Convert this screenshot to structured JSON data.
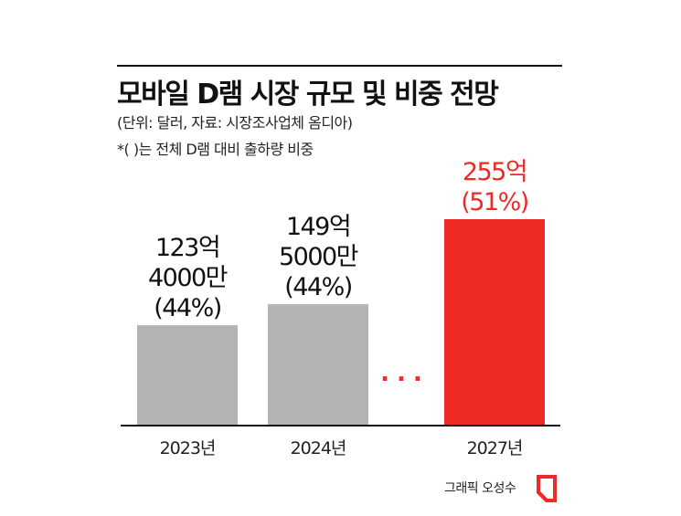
{
  "header": {
    "title": "모바일 D램 시장 규모 및 비중 전망",
    "subtitle": "(단위: 달러, 자료: 시장조사업체 옴디아)",
    "note": "*( )는 전체 D램 대비 출하량 비중"
  },
  "chart_data": {
    "type": "bar",
    "title": "모바일 D램 시장 규모 및 비중 전망",
    "categories": [
      "2023년",
      "2024년",
      "2027년"
    ],
    "values": [
      12340000000,
      14950000000,
      25500000000
    ],
    "share_percent": [
      44,
      44,
      51
    ],
    "value_labels": [
      [
        "123억",
        "4000만",
        "(44%)"
      ],
      [
        "149억",
        "5000만",
        "(44%)"
      ],
      [
        "255억",
        "(51%)"
      ]
    ],
    "gap_marker": "...",
    "unit": "달러",
    "colors": {
      "default_bar": "#b3b3b3",
      "highlight_bar": "#ee2a24",
      "default_label": "#111111",
      "highlight_label": "#ee2a24",
      "baseline": "#111111"
    },
    "highlight_index": 2
  },
  "footer": {
    "credit": "그래픽 오성수",
    "logo_icon": "red-page-corner-logo",
    "logo_color": "#ee2a24"
  }
}
